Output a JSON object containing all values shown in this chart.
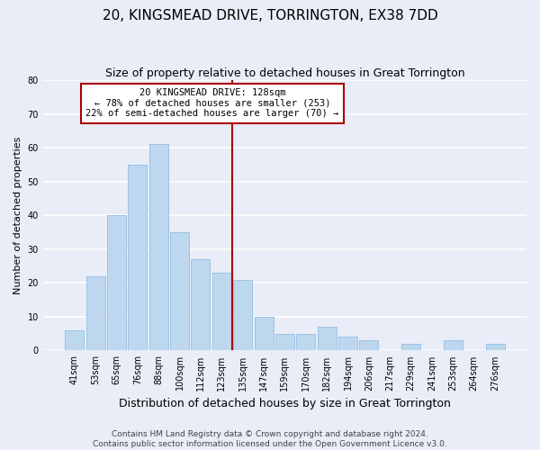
{
  "title": "20, KINGSMEAD DRIVE, TORRINGTON, EX38 7DD",
  "subtitle": "Size of property relative to detached houses in Great Torrington",
  "xlabel": "Distribution of detached houses by size in Great Torrington",
  "ylabel": "Number of detached properties",
  "categories": [
    "41sqm",
    "53sqm",
    "65sqm",
    "76sqm",
    "88sqm",
    "100sqm",
    "112sqm",
    "123sqm",
    "135sqm",
    "147sqm",
    "159sqm",
    "170sqm",
    "182sqm",
    "194sqm",
    "206sqm",
    "217sqm",
    "229sqm",
    "241sqm",
    "253sqm",
    "264sqm",
    "276sqm"
  ],
  "values": [
    6,
    22,
    40,
    55,
    61,
    35,
    27,
    23,
    21,
    10,
    5,
    5,
    7,
    4,
    3,
    0,
    2,
    0,
    3,
    0,
    2
  ],
  "bar_color": "#bdd7ee",
  "bar_edge_color": "#9dc3e6",
  "background_color": "#e8edf8",
  "grid_color": "#ffffff",
  "vline_x_index": 7.5,
  "vline_color": "#aa0000",
  "annotation_title": "20 KINGSMEAD DRIVE: 128sqm",
  "annotation_line1": "← 78% of detached houses are smaller (253)",
  "annotation_line2": "22% of semi-detached houses are larger (70) →",
  "annotation_box_color": "#ffffff",
  "annotation_box_edge_color": "#aa0000",
  "ylim": [
    0,
    80
  ],
  "yticks": [
    0,
    10,
    20,
    30,
    40,
    50,
    60,
    70,
    80
  ],
  "footer_line1": "Contains HM Land Registry data © Crown copyright and database right 2024.",
  "footer_line2": "Contains public sector information licensed under the Open Government Licence v3.0.",
  "title_fontsize": 11,
  "subtitle_fontsize": 9,
  "xlabel_fontsize": 9,
  "ylabel_fontsize": 8,
  "tick_fontsize": 7,
  "annotation_fontsize": 7.5,
  "footer_fontsize": 6.5
}
